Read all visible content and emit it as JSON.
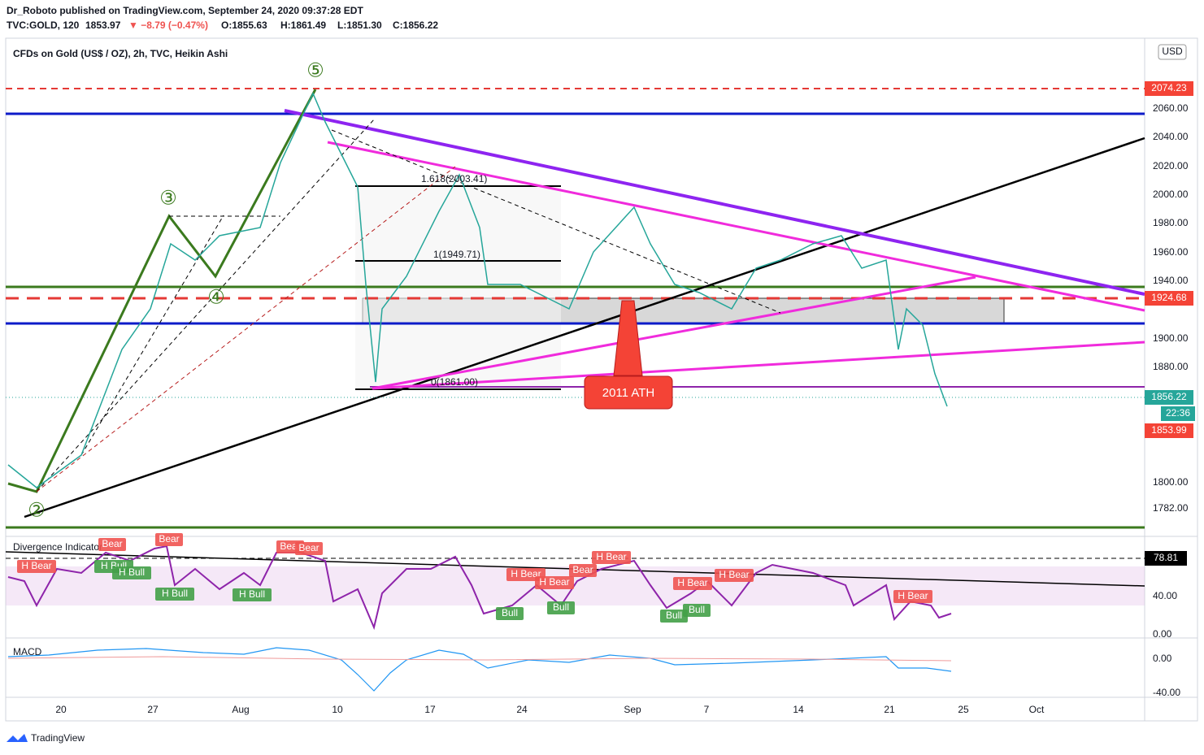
{
  "header": {
    "publisher": "Dr_Roboto published on TradingView.com, September 24, 2020 09:37:28 EDT",
    "symbol": "TVC:GOLD, 120",
    "last": "1853.97",
    "change": "▼ −8.79 (−0.47%)",
    "ohlc": [
      "O:1855.63",
      "H:1861.49",
      "L:1851.30",
      "C:1856.22"
    ]
  },
  "chart": {
    "title": "CFDs on Gold (US$ / OZ), 2h, TVC, Heikin Ashi",
    "currency": "USD",
    "price_ticks": [
      "2060.00",
      "2040.00",
      "2020.00",
      "2000.00",
      "1980.00",
      "1960.00",
      "1940.00",
      "1900.00",
      "1880.00",
      "1800.00",
      "1782.00"
    ],
    "badges": [
      "2074.23",
      "1924.68",
      "1856.22",
      "22:36",
      "1853.99"
    ],
    "dates": [
      "20",
      "27",
      "Aug",
      "10",
      "17",
      "24",
      "Sep",
      "7",
      "14",
      "21",
      "25",
      "Oct"
    ],
    "waves": [
      "⑤",
      "③",
      "④",
      "②"
    ],
    "fib": [
      "1.618(2003.41)",
      "1(1949.71)",
      "0(1861.00)"
    ],
    "callout": "2011 ATH"
  },
  "divergence": {
    "title": "Divergence Indicator",
    "labels": [
      "H Bear",
      "Bear",
      "H Bull",
      "H Bull",
      "Bear",
      "H Bull",
      "H Bull",
      "Bear",
      "Bear",
      "H Bear",
      "H Bear",
      "Bear",
      "H Bear",
      "Bull",
      "Bull",
      "H Bear",
      "H Bear",
      "Bull",
      "Bull",
      "H Bear"
    ],
    "badge": "78.81",
    "ticks": [
      "40.00",
      "0.00"
    ]
  },
  "macd": {
    "title": "MACD",
    "ticks": [
      "0.00",
      "-40.00"
    ]
  },
  "footer": "TradingView"
}
